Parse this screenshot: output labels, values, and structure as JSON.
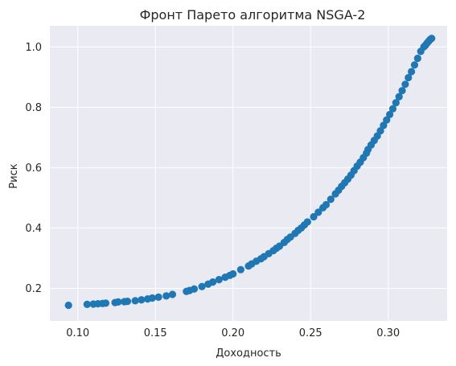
{
  "chart_data": {
    "type": "scatter",
    "title": "Фронт Парето алгоритма NSGA-2",
    "xlabel": "Доходность",
    "ylabel": "Риск",
    "xlim": [
      0.082,
      0.338
    ],
    "ylim": [
      0.092,
      1.07
    ],
    "xticks": [
      "0.10",
      "0.15",
      "0.20",
      "0.25",
      "0.30"
    ],
    "yticks": [
      "0.2",
      "0.4",
      "0.6",
      "0.8",
      "1.0"
    ],
    "grid": true,
    "background_color": "#eaeaf2",
    "grid_color": "#ffffff",
    "marker_color": "#1f77b4",
    "series": [
      {
        "x": [
          0.094,
          0.106,
          0.11,
          0.113,
          0.116,
          0.118,
          0.124,
          0.126,
          0.13,
          0.132,
          0.137,
          0.141,
          0.145,
          0.148,
          0.152,
          0.157,
          0.161,
          0.17,
          0.172,
          0.175,
          0.18,
          0.184,
          0.187,
          0.191,
          0.195,
          0.198,
          0.2,
          0.205,
          0.21,
          0.212,
          0.215,
          0.218,
          0.22,
          0.223,
          0.226,
          0.228,
          0.23,
          0.233,
          0.235,
          0.237,
          0.24,
          0.242,
          0.244,
          0.246,
          0.248,
          0.252,
          0.255,
          0.258,
          0.26,
          0.263,
          0.266,
          0.268,
          0.27,
          0.272,
          0.274,
          0.276,
          0.278,
          0.28,
          0.282,
          0.284,
          0.286,
          0.287,
          0.289,
          0.291,
          0.293,
          0.295,
          0.297,
          0.299,
          0.301,
          0.303,
          0.305,
          0.307,
          0.309,
          0.311,
          0.313,
          0.315,
          0.317,
          0.319,
          0.321,
          0.323,
          0.324,
          0.325,
          0.326,
          0.327,
          0.328
        ],
        "y": [
          0.144,
          0.147,
          0.148,
          0.149,
          0.15,
          0.151,
          0.153,
          0.155,
          0.156,
          0.157,
          0.159,
          0.162,
          0.165,
          0.168,
          0.171,
          0.175,
          0.18,
          0.19,
          0.193,
          0.198,
          0.206,
          0.214,
          0.221,
          0.229,
          0.237,
          0.243,
          0.248,
          0.262,
          0.274,
          0.281,
          0.29,
          0.298,
          0.305,
          0.315,
          0.325,
          0.333,
          0.34,
          0.352,
          0.362,
          0.37,
          0.382,
          0.392,
          0.4,
          0.41,
          0.42,
          0.437,
          0.452,
          0.467,
          0.477,
          0.495,
          0.513,
          0.525,
          0.538,
          0.55,
          0.562,
          0.575,
          0.59,
          0.605,
          0.618,
          0.633,
          0.648,
          0.66,
          0.675,
          0.69,
          0.705,
          0.722,
          0.74,
          0.758,
          0.776,
          0.795,
          0.815,
          0.835,
          0.855,
          0.876,
          0.898,
          0.918,
          0.94,
          0.962,
          0.985,
          1.0,
          1.005,
          1.012,
          1.018,
          1.024,
          1.028
        ]
      }
    ]
  }
}
